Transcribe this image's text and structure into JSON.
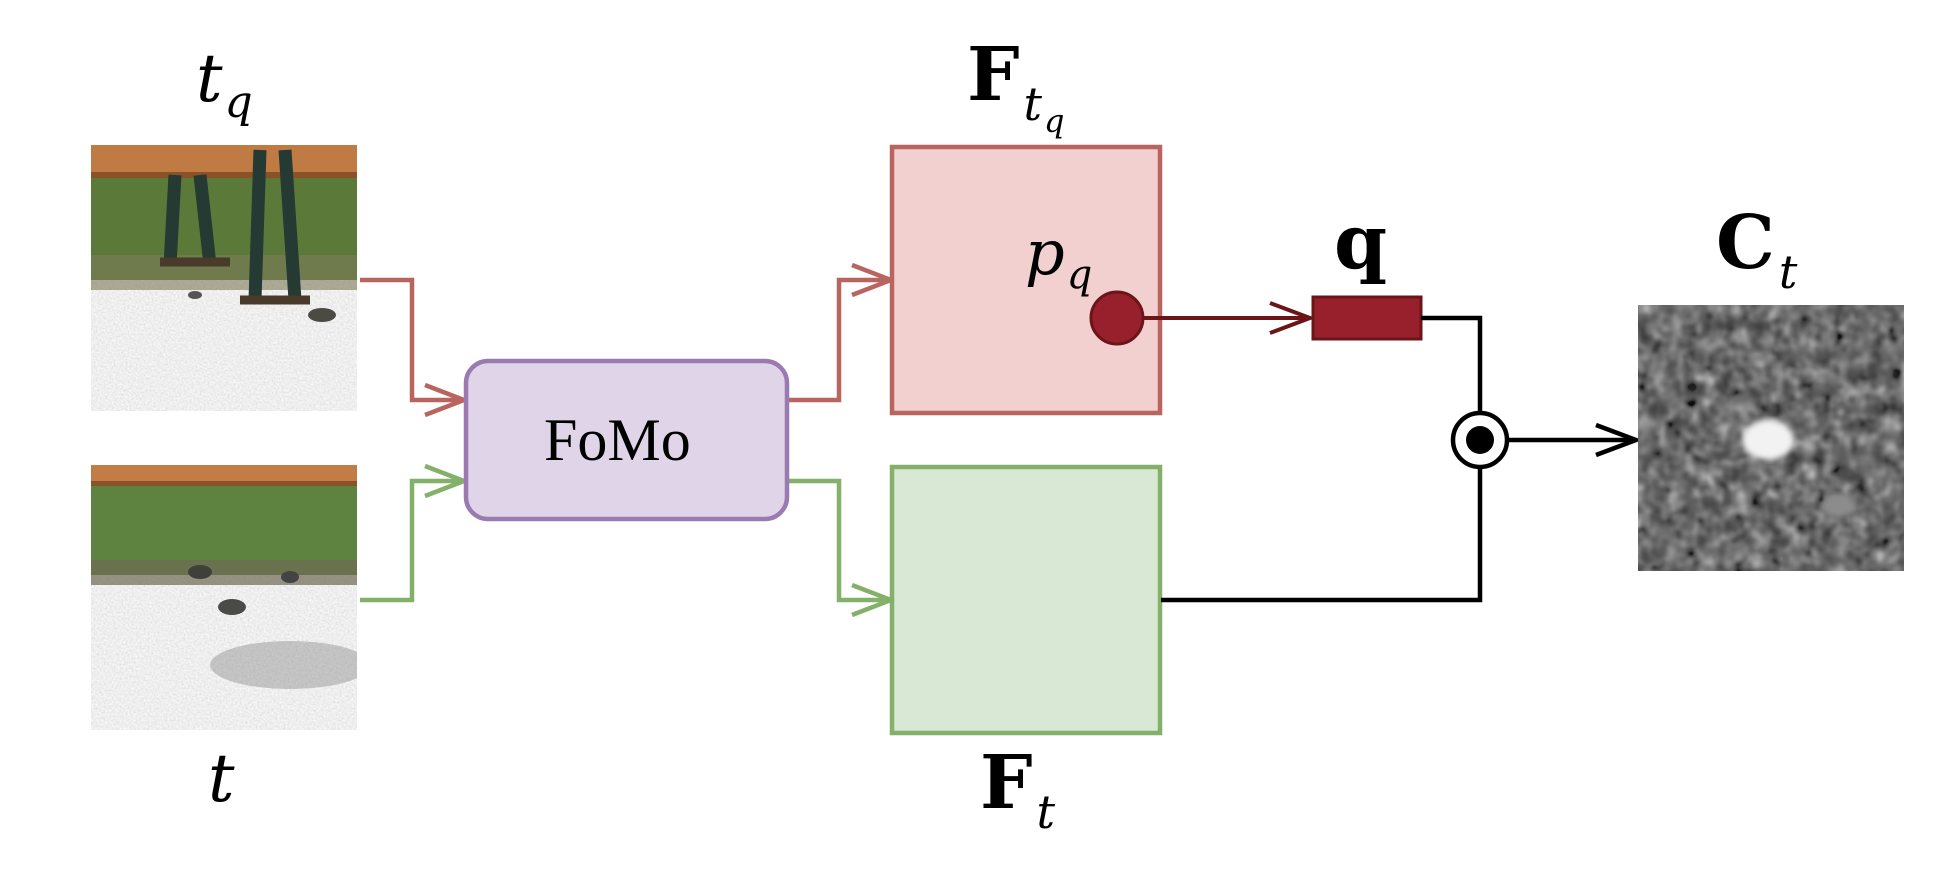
{
  "inputs": {
    "query_frame": {
      "symbol": "t",
      "subscript": "q"
    },
    "target_frame": {
      "symbol": "t"
    }
  },
  "model": {
    "label": "FoMo"
  },
  "features": {
    "query": {
      "symbol": "F",
      "subscript": "t",
      "subsub": "q"
    },
    "target": {
      "symbol": "F",
      "subscript": "t"
    },
    "query_point": {
      "symbol": "p",
      "subscript": "q"
    }
  },
  "query_vector": {
    "symbol": "q"
  },
  "correlation": {
    "symbol": "C",
    "subscript": "t"
  },
  "colors": {
    "query_path": "#b86560",
    "target_path": "#85b06a",
    "model_fill": "#e0d5e8",
    "model_stroke": "#9a7ab0",
    "query_feat_fill": "#f2d0cf",
    "target_feat_fill": "#d8e8d4",
    "query_vec": "#97202c",
    "dark_arrow": "#6b1519"
  }
}
